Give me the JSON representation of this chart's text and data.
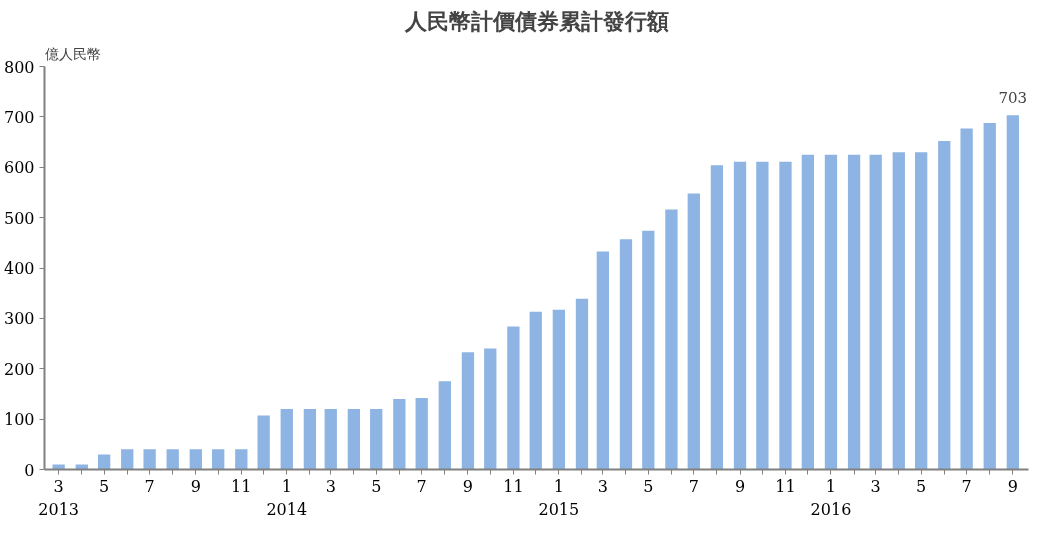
{
  "chart_data": {
    "type": "bar",
    "title": "人民幣計價債券累計發行額",
    "ylabel": "億人民幣",
    "x": [
      "2013-03",
      "2013-04",
      "2013-05",
      "2013-06",
      "2013-07",
      "2013-08",
      "2013-09",
      "2013-10",
      "2013-11",
      "2013-12",
      "2014-01",
      "2014-02",
      "2014-03",
      "2014-04",
      "2014-05",
      "2014-06",
      "2014-07",
      "2014-08",
      "2014-09",
      "2014-10",
      "2014-11",
      "2014-12",
      "2015-01",
      "2015-02",
      "2015-03",
      "2015-04",
      "2015-05",
      "2015-06",
      "2015-07",
      "2015-08",
      "2015-09",
      "2015-10",
      "2015-11",
      "2015-12",
      "2016-01",
      "2016-02",
      "2016-03",
      "2016-04",
      "2016-05",
      "2016-06",
      "2016-07",
      "2016-08",
      "2016-09"
    ],
    "values": [
      10,
      10,
      30,
      40,
      40,
      40,
      40,
      40,
      40,
      107,
      120,
      120,
      120,
      120,
      120,
      140,
      142,
      175,
      233,
      240,
      284,
      313,
      317,
      339,
      433,
      457,
      474,
      516,
      548,
      604,
      611,
      611,
      611,
      625,
      625,
      625,
      625,
      630,
      630,
      652,
      677,
      688,
      703
    ],
    "value_labels": [
      null,
      null,
      null,
      null,
      null,
      null,
      null,
      null,
      null,
      null,
      null,
      null,
      null,
      null,
      null,
      null,
      null,
      null,
      null,
      null,
      null,
      null,
      null,
      null,
      null,
      null,
      null,
      null,
      null,
      null,
      null,
      null,
      null,
      null,
      null,
      null,
      null,
      null,
      null,
      null,
      null,
      null,
      "703"
    ],
    "color": "#8db4e2",
    "xlim": [
      "2013-02-10",
      "2016-09-22"
    ],
    "xticks": [
      {
        "value": "2013-03",
        "label": "3"
      },
      {
        "value": "2013-04",
        "label": null
      },
      {
        "value": "2013-05",
        "label": "5"
      },
      {
        "value": "2013-06",
        "label": null
      },
      {
        "value": "2013-07",
        "label": "7"
      },
      {
        "value": "2013-08",
        "label": null
      },
      {
        "value": "2013-09",
        "label": "9"
      },
      {
        "value": "2013-10",
        "label": null
      },
      {
        "value": "2013-11",
        "label": "11"
      },
      {
        "value": "2013-12",
        "label": null
      },
      {
        "value": "2014-01",
        "label": "1"
      },
      {
        "value": "2014-02",
        "label": null
      },
      {
        "value": "2014-03",
        "label": "3"
      },
      {
        "value": "2014-04",
        "label": null
      },
      {
        "value": "2014-05",
        "label": "5"
      },
      {
        "value": "2014-06",
        "label": null
      },
      {
        "value": "2014-07",
        "label": "7"
      },
      {
        "value": "2014-08",
        "label": null
      },
      {
        "value": "2014-09",
        "label": "9"
      },
      {
        "value": "2014-10",
        "label": null
      },
      {
        "value": "2014-11",
        "label": "11"
      },
      {
        "value": "2014-12",
        "label": null
      },
      {
        "value": "2015-01",
        "label": "1"
      },
      {
        "value": "2015-02",
        "label": null
      },
      {
        "value": "2015-03",
        "label": "3"
      },
      {
        "value": "2015-04",
        "label": null
      },
      {
        "value": "2015-05",
        "label": "5"
      },
      {
        "value": "2015-06",
        "label": null
      },
      {
        "value": "2015-07",
        "label": "7"
      },
      {
        "value": "2015-08",
        "label": null
      },
      {
        "value": "2015-09",
        "label": "9"
      },
      {
        "value": "2015-10",
        "label": null
      },
      {
        "value": "2015-11",
        "label": "11"
      },
      {
        "value": "2015-12",
        "label": null
      },
      {
        "value": "2016-01",
        "label": "1"
      },
      {
        "value": "2016-02",
        "label": null
      },
      {
        "value": "2016-03",
        "label": "3"
      },
      {
        "value": "2016-04",
        "label": null
      },
      {
        "value": "2016-05",
        "label": "5"
      },
      {
        "value": "2016-06",
        "label": null
      },
      {
        "value": "2016-07",
        "label": "7"
      },
      {
        "value": "2016-08",
        "label": null
      },
      {
        "value": "2016-09",
        "label": "9"
      }
    ],
    "ylim": [
      0,
      800
    ],
    "yticks": [
      0,
      100,
      200,
      300,
      400,
      500,
      600,
      700,
      800
    ],
    "grid": false,
    "annotations": [
      "2013",
      "2014",
      "2015",
      "2016"
    ]
  }
}
